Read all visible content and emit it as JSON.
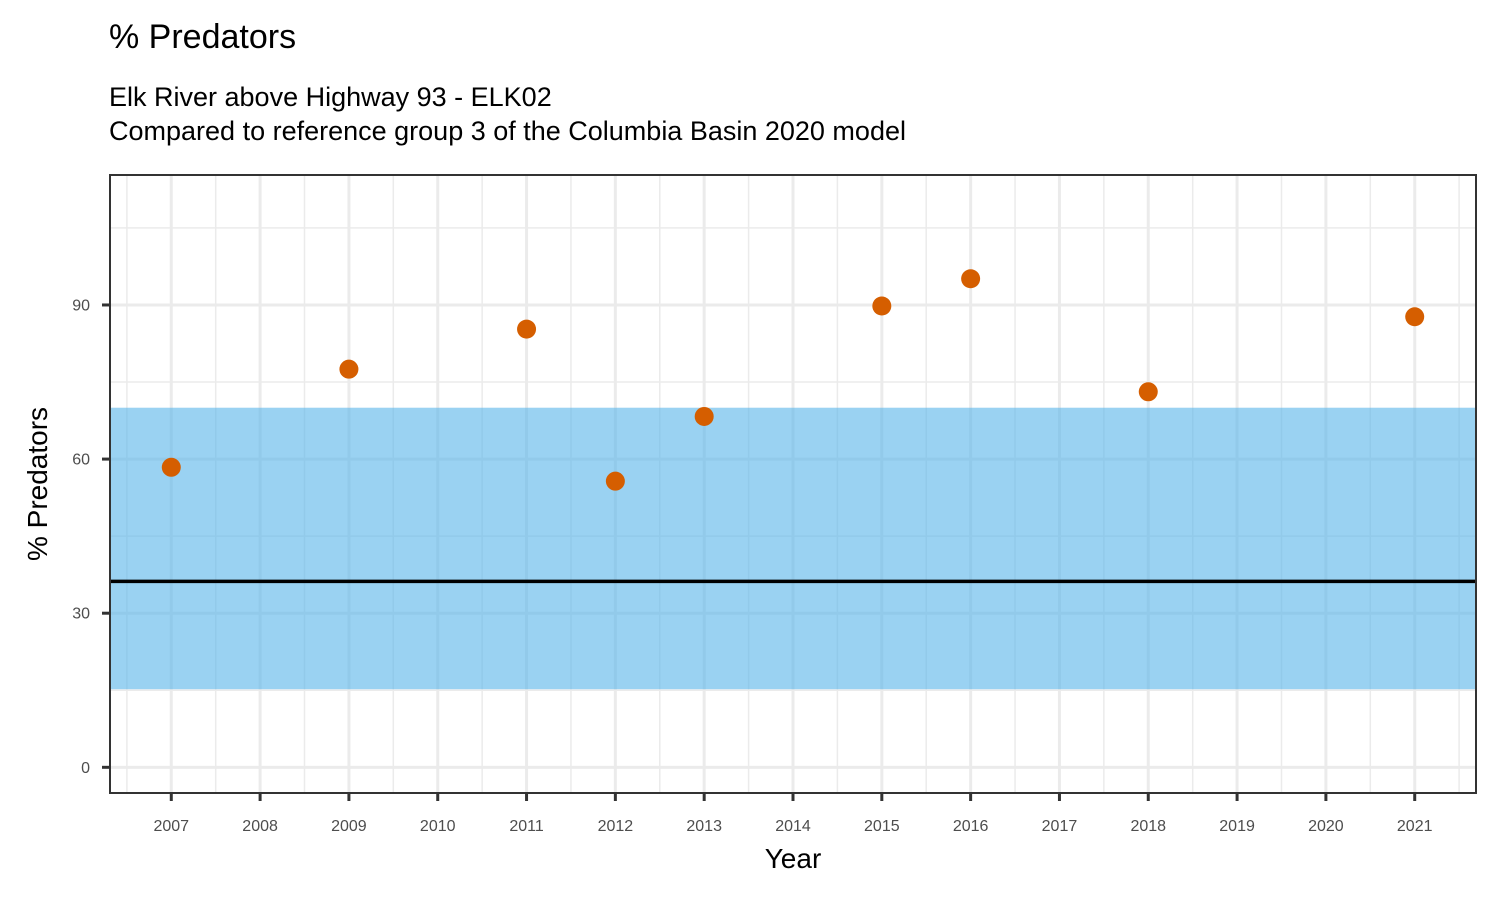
{
  "chart_data": {
    "type": "scatter",
    "title": "% Predators",
    "subtitle_lines": [
      "Elk River above Highway 93 - ELK02",
      "Compared to reference group 3 of the Columbia Basin 2020 model"
    ],
    "xlabel": "Year",
    "ylabel": "% Predators",
    "xlim": [
      2006.31,
      2021.69
    ],
    "ylim": [
      -5,
      115.3
    ],
    "x_ticks": [
      2007,
      2008,
      2009,
      2010,
      2011,
      2012,
      2013,
      2014,
      2015,
      2016,
      2017,
      2018,
      2019,
      2020,
      2021
    ],
    "x_tick_labels": [
      "2007",
      "2008",
      "2009",
      "2010",
      "2011",
      "2012",
      "2013",
      "2014",
      "2015",
      "2016",
      "2017",
      "2018",
      "2019",
      "2020",
      "2021"
    ],
    "y_ticks": [
      0,
      30,
      60,
      90
    ],
    "y_tick_labels": [
      "0",
      "30",
      "60",
      "90"
    ],
    "y_minor_ticks": [
      15,
      45,
      75,
      105
    ],
    "grid": true,
    "series": [
      {
        "name": "% Predators",
        "x": [
          2007,
          2009,
          2011,
          2012,
          2013,
          2015,
          2016,
          2018,
          2021
        ],
        "y": [
          58.4,
          77.5,
          85.3,
          55.7,
          68.3,
          89.8,
          95.1,
          73.1,
          87.7
        ],
        "color": "#D55E00"
      }
    ],
    "reference_band": {
      "lower": 15.2,
      "upper": 70.0,
      "color": "#56B4E9",
      "opacity": 0.6
    },
    "reference_line": {
      "value": 36.2,
      "color": "#000000"
    }
  }
}
